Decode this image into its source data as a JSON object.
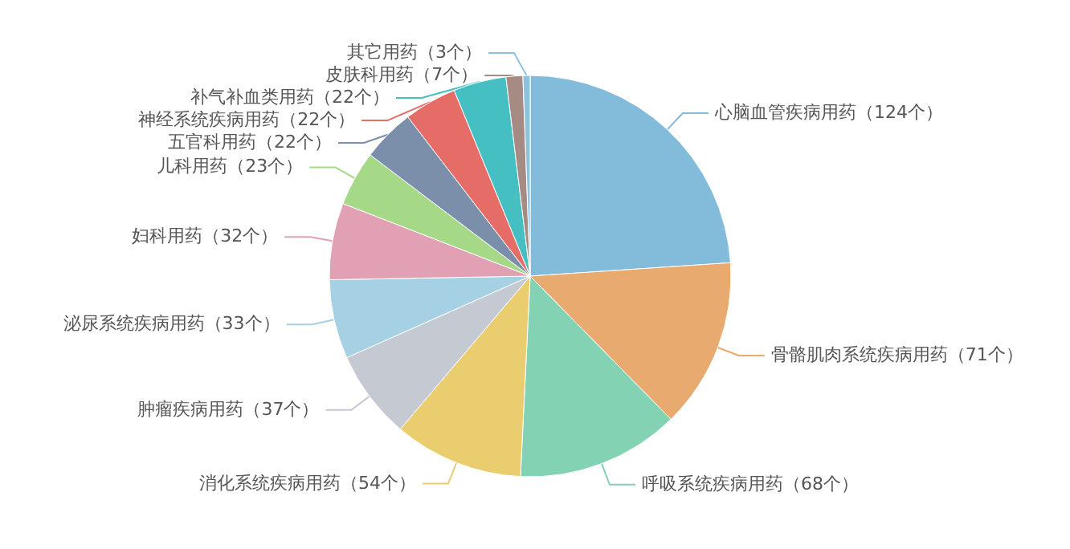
{
  "chart_data": {
    "type": "pie",
    "categories": [
      "心脑血管疾病用药",
      "骨骼肌肉系统疾病用药",
      "呼吸系统疾病用药",
      "消化系统疾病用药",
      "肿瘤疾病用药",
      "泌尿系统疾病用药",
      "妇科用药",
      "儿科用药",
      "五官科用药",
      "神经系统疾病用药",
      "补气补血类用药",
      "皮肤科用药",
      "其它用药"
    ],
    "values": [
      124,
      71,
      68,
      54,
      37,
      33,
      32,
      23,
      22,
      22,
      22,
      7,
      3
    ],
    "value_labels": [
      "（124个）",
      "（71个）",
      "（68个）",
      "（54个）",
      "（37个）",
      "（33个）",
      "（32个）",
      "（23个）",
      "（22个）",
      "（22个）",
      "（22个）",
      "（7个）",
      "（3个）"
    ],
    "colors": [
      "#83bbdb",
      "#e8aa6e",
      "#82d2b3",
      "#e9cd6e",
      "#c5cad2",
      "#a6d0e4",
      "#e2a0b4",
      "#a5d887",
      "#7b8fab",
      "#e56c67",
      "#45bfc2",
      "#a58b84",
      "#8fc3dd"
    ]
  }
}
